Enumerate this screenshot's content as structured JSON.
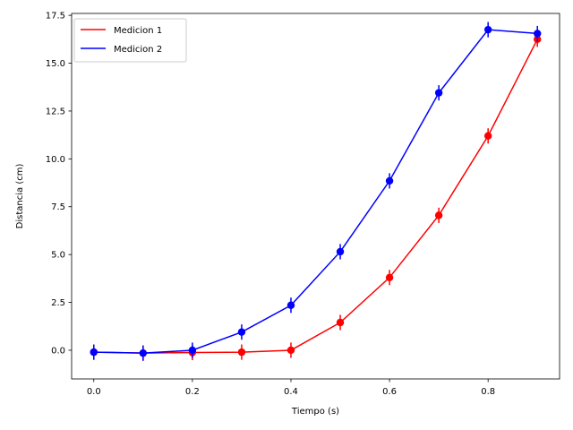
{
  "chart_data": {
    "type": "line",
    "title": "",
    "xlabel": "Tiempo (s)",
    "ylabel": "Distancia (cm)",
    "xlim": [
      -0.045,
      0.945
    ],
    "ylim": [
      -1.5,
      17.6
    ],
    "xticks": [
      0.0,
      0.2,
      0.4,
      0.6,
      0.8
    ],
    "xtick_labels": [
      "0.0",
      "0.2",
      "0.4",
      "0.6",
      "0.8"
    ],
    "yticks": [
      0.0,
      2.5,
      5.0,
      7.5,
      10.0,
      12.5,
      15.0,
      17.5
    ],
    "ytick_labels": [
      "0.0",
      "2.5",
      "5.0",
      "7.5",
      "10.0",
      "12.5",
      "15.0",
      "17.5"
    ],
    "x": [
      0.0,
      0.1,
      0.2,
      0.3,
      0.4,
      0.5,
      0.6,
      0.7,
      0.8,
      0.9
    ],
    "error": 0.4,
    "grid": false,
    "legend_position": "top-left",
    "series": [
      {
        "name": "Medicion 1",
        "color": "#ff0000",
        "values": [
          -0.1,
          -0.15,
          -0.12,
          -0.1,
          0.0,
          1.45,
          3.8,
          7.05,
          11.2,
          16.25
        ]
      },
      {
        "name": "Medicion 2",
        "color": "#0000ff",
        "values": [
          -0.1,
          -0.15,
          0.0,
          0.95,
          2.35,
          5.15,
          8.85,
          13.45,
          16.75,
          16.55
        ]
      }
    ]
  }
}
